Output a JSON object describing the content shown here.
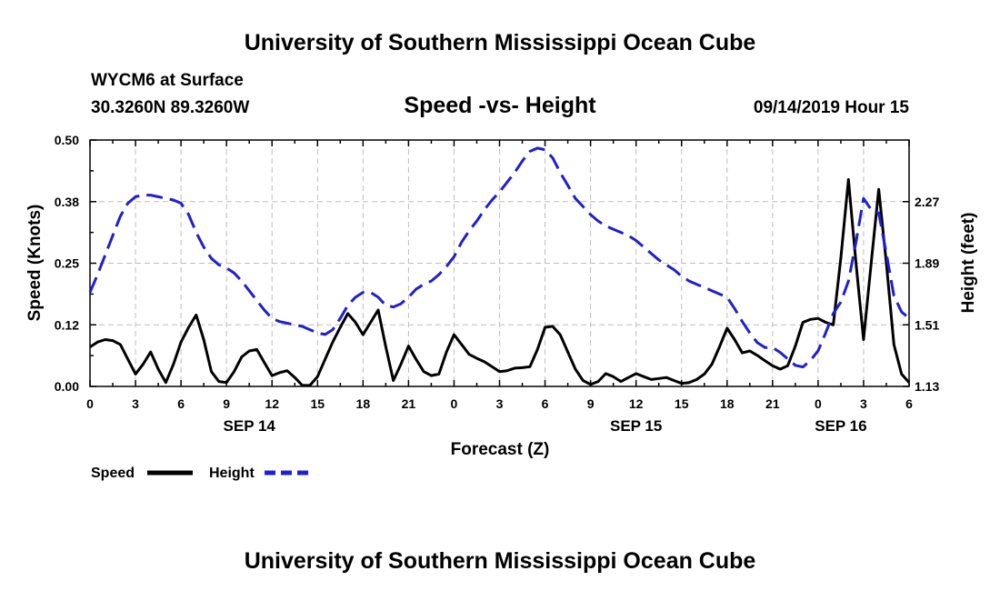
{
  "header": {
    "title_top": "University of Southern Mississippi Ocean Cube",
    "station": "WYCM6 at Surface",
    "coords": "30.3260N 89.3260W",
    "datetime": "09/14/2019 Hour 15",
    "title_bottom": "University of Southern Mississippi Ocean Cube"
  },
  "colors": {
    "speed": "#000000",
    "height": "#1f1fd0"
  },
  "chart_data": {
    "type": "line",
    "title": "Speed -vs- Height",
    "xlabel": "Forecast (Z)",
    "ylabel_left": "Speed (Knots)",
    "ylabel_right": "Height (feet)",
    "xlim": [
      0,
      54
    ],
    "ylim_left": [
      0,
      0.5
    ],
    "ylim_right": [
      1.13,
      2.65
    ],
    "yticks_left": [
      {
        "v": 0.0,
        "label": "0.00"
      },
      {
        "v": 0.125,
        "label": "0.12"
      },
      {
        "v": 0.25,
        "label": "0.25"
      },
      {
        "v": 0.375,
        "label": "0.38"
      },
      {
        "v": 0.5,
        "label": "0.50"
      }
    ],
    "yticks_right": [
      {
        "v": 1.13,
        "label": "1.13"
      },
      {
        "v": 1.51,
        "label": "1.51"
      },
      {
        "v": 1.89,
        "label": "1.89"
      },
      {
        "v": 2.27,
        "label": "2.27"
      }
    ],
    "xticks": [
      {
        "v": 0,
        "label": "0"
      },
      {
        "v": 3,
        "label": "3"
      },
      {
        "v": 6,
        "label": "6"
      },
      {
        "v": 9,
        "label": "9"
      },
      {
        "v": 12,
        "label": "12"
      },
      {
        "v": 15,
        "label": "15"
      },
      {
        "v": 18,
        "label": "18"
      },
      {
        "v": 21,
        "label": "21"
      },
      {
        "v": 24,
        "label": "0"
      },
      {
        "v": 27,
        "label": "3"
      },
      {
        "v": 30,
        "label": "6"
      },
      {
        "v": 33,
        "label": "9"
      },
      {
        "v": 36,
        "label": "12"
      },
      {
        "v": 39,
        "label": "15"
      },
      {
        "v": 42,
        "label": "18"
      },
      {
        "v": 45,
        "label": "21"
      },
      {
        "v": 48,
        "label": "0"
      },
      {
        "v": 51,
        "label": "3"
      },
      {
        "v": 54,
        "label": "6"
      }
    ],
    "date_labels": [
      {
        "x": 10.5,
        "label": "SEP 14"
      },
      {
        "x": 36,
        "label": "SEP 15"
      },
      {
        "x": 49.5,
        "label": "SEP 16"
      }
    ],
    "legend": [
      {
        "name": "Speed",
        "style": "solid"
      },
      {
        "name": "Height",
        "style": "dashed"
      }
    ],
    "series": [
      {
        "name": "Speed",
        "axis": "left",
        "x": [
          0,
          0.5,
          1,
          1.5,
          2,
          2.5,
          3,
          3.5,
          4,
          4.5,
          5,
          5.5,
          6,
          6.5,
          7,
          7.5,
          8,
          8.5,
          9,
          9.5,
          10,
          10.5,
          11,
          11.5,
          12,
          12.5,
          13,
          13.5,
          14,
          14.5,
          15,
          15.5,
          16,
          16.5,
          17,
          17.5,
          18,
          18.5,
          19,
          19.5,
          20,
          20.5,
          21,
          21.5,
          22,
          22.5,
          23,
          23.5,
          24,
          24.5,
          25,
          25.5,
          26,
          26.5,
          27,
          27.5,
          28,
          28.5,
          29,
          29.5,
          30,
          30.5,
          31,
          31.5,
          32,
          32.5,
          33,
          33.5,
          34,
          34.5,
          35,
          35.5,
          36,
          36.5,
          37,
          37.5,
          38,
          38.5,
          39,
          39.5,
          40,
          40.5,
          41,
          41.5,
          42,
          42.5,
          43,
          43.5,
          44,
          44.5,
          45,
          45.5,
          46,
          46.5,
          47,
          47.5,
          48,
          48.5,
          49,
          49.5,
          50,
          50.5,
          51,
          51.5,
          52,
          52.5,
          53,
          53.5,
          54
        ],
        "values": [
          0.08,
          0.09,
          0.095,
          0.093,
          0.085,
          0.055,
          0.025,
          0.045,
          0.07,
          0.035,
          0.008,
          0.045,
          0.09,
          0.12,
          0.145,
          0.095,
          0.03,
          0.01,
          0.008,
          0.03,
          0.06,
          0.072,
          0.075,
          0.048,
          0.022,
          0.028,
          0.032,
          0.018,
          0.002,
          0.002,
          0.02,
          0.055,
          0.09,
          0.12,
          0.148,
          0.13,
          0.105,
          0.13,
          0.155,
          0.08,
          0.012,
          0.045,
          0.082,
          0.055,
          0.03,
          0.022,
          0.025,
          0.07,
          0.105,
          0.085,
          0.065,
          0.057,
          0.05,
          0.04,
          0.03,
          0.032,
          0.037,
          0.038,
          0.04,
          0.075,
          0.12,
          0.122,
          0.105,
          0.07,
          0.035,
          0.012,
          0.004,
          0.01,
          0.026,
          0.02,
          0.01,
          0.018,
          0.026,
          0.02,
          0.014,
          0.016,
          0.018,
          0.012,
          0.006,
          0.008,
          0.014,
          0.025,
          0.045,
          0.08,
          0.118,
          0.095,
          0.068,
          0.072,
          0.063,
          0.052,
          0.042,
          0.035,
          0.042,
          0.082,
          0.13,
          0.136,
          0.138,
          0.13,
          0.125,
          0.26,
          0.42,
          0.25,
          0.095,
          0.25,
          0.4,
          0.25,
          0.085,
          0.025,
          0.008
        ]
      },
      {
        "name": "Height",
        "axis": "right",
        "x": [
          0,
          0.5,
          1,
          1.5,
          2,
          2.5,
          3,
          3.5,
          4,
          4.5,
          5,
          5.5,
          6,
          6.5,
          7,
          7.5,
          8,
          8.5,
          9,
          9.5,
          10,
          10.5,
          11,
          11.5,
          12,
          12.5,
          13,
          13.5,
          14,
          14.5,
          15,
          15.5,
          16,
          16.5,
          17,
          17.5,
          18,
          18.5,
          19,
          19.5,
          20,
          20.5,
          21,
          21.5,
          22,
          22.5,
          23,
          23.5,
          24,
          24.5,
          25,
          25.5,
          26,
          26.5,
          27,
          27.5,
          28,
          28.5,
          29,
          29.5,
          30,
          30.5,
          31,
          31.5,
          32,
          32.5,
          33,
          33.5,
          34,
          34.5,
          35,
          35.5,
          36,
          36.5,
          37,
          37.5,
          38,
          38.5,
          39,
          39.5,
          40,
          40.5,
          41,
          41.5,
          42,
          42.5,
          43,
          43.5,
          44,
          44.5,
          45,
          45.5,
          46,
          46.5,
          47,
          47.5,
          48,
          48.5,
          49,
          49.5,
          50,
          50.5,
          51,
          51.5,
          52,
          52.5,
          53,
          53.5,
          54
        ],
        "values": [
          1.71,
          1.82,
          1.94,
          2.06,
          2.18,
          2.26,
          2.3,
          2.31,
          2.31,
          2.3,
          2.29,
          2.28,
          2.26,
          2.19,
          2.08,
          1.99,
          1.92,
          1.88,
          1.86,
          1.83,
          1.78,
          1.72,
          1.66,
          1.6,
          1.55,
          1.53,
          1.52,
          1.51,
          1.5,
          1.48,
          1.46,
          1.45,
          1.48,
          1.55,
          1.63,
          1.68,
          1.71,
          1.71,
          1.68,
          1.63,
          1.62,
          1.64,
          1.68,
          1.73,
          1.76,
          1.78,
          1.82,
          1.87,
          1.93,
          2.02,
          2.09,
          2.15,
          2.22,
          2.28,
          2.33,
          2.39,
          2.45,
          2.52,
          2.58,
          2.6,
          2.59,
          2.54,
          2.45,
          2.37,
          2.29,
          2.24,
          2.19,
          2.15,
          2.12,
          2.1,
          2.08,
          2.06,
          2.03,
          1.99,
          1.95,
          1.91,
          1.88,
          1.85,
          1.81,
          1.78,
          1.76,
          1.74,
          1.72,
          1.7,
          1.68,
          1.61,
          1.53,
          1.46,
          1.4,
          1.37,
          1.37,
          1.34,
          1.3,
          1.26,
          1.25,
          1.29,
          1.35,
          1.46,
          1.58,
          1.65,
          1.78,
          2.02,
          2.29,
          2.22,
          2.2,
          1.95,
          1.69,
          1.59,
          1.55
        ]
      }
    ]
  }
}
